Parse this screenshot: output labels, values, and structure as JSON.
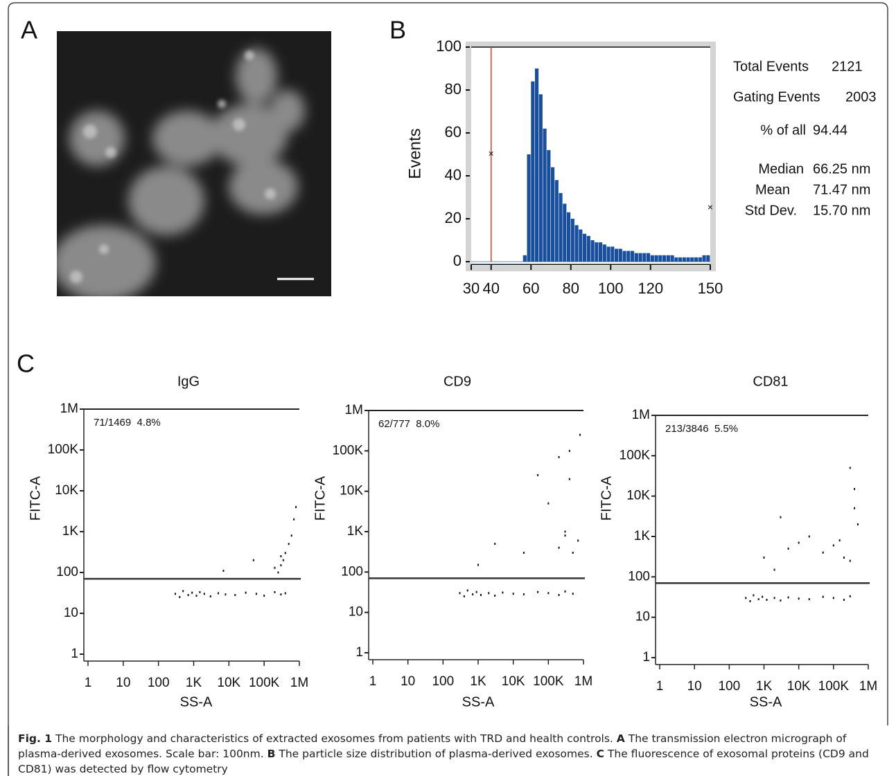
{
  "labels": [
    "A",
    "B",
    "C"
  ],
  "chart_data": [
    {
      "type": "histogram",
      "ylabel": "Events",
      "bins": [
        56,
        58,
        60,
        62,
        64,
        66,
        68,
        70,
        72,
        74,
        76,
        78,
        80,
        82,
        84,
        86,
        88,
        90,
        92,
        94,
        96,
        98,
        100,
        102,
        104,
        106,
        108,
        110,
        112,
        114,
        116,
        118,
        120,
        122,
        124,
        126,
        128,
        130,
        132,
        134,
        136,
        138,
        140,
        142,
        144,
        146,
        148,
        150
      ],
      "values": [
        3,
        50,
        84,
        90,
        78,
        62,
        52,
        44,
        38,
        32,
        27,
        23,
        20,
        17,
        15,
        13,
        12,
        10,
        9,
        9,
        8,
        7,
        7,
        6,
        6,
        5,
        5,
        5,
        4,
        4,
        4,
        4,
        3,
        3,
        3,
        3,
        3,
        3,
        2,
        2,
        2,
        2,
        2,
        2,
        2,
        3,
        3
      ],
      "color": "#1a4f9c",
      "xlim": [
        30,
        150
      ],
      "xticks": [
        30,
        40,
        60,
        80,
        100,
        120,
        150
      ],
      "ylim": [
        0,
        100
      ],
      "yticks": [
        0,
        20,
        40,
        60,
        80,
        100
      ],
      "gate_markers": {
        "x": [
          40,
          150
        ],
        "y": [
          50,
          25
        ],
        "color": "#e03a2a"
      },
      "stats": [
        {
          "label": "Total Events",
          "value": "2121"
        },
        {
          "label": "Gating Events",
          "value": "2003"
        },
        {
          "label": "% of all",
          "value": "94.44"
        },
        {
          "label": "Median",
          "value": "66.25 nm"
        },
        {
          "label": "Mean",
          "value": "71.47 nm"
        },
        {
          "label": "Std Dev.",
          "value": "15.70 nm"
        }
      ]
    },
    {
      "type": "scatter",
      "title": "IgG",
      "xlabel": "SS-A",
      "ylabel": "FITC-A",
      "log": true,
      "gate_y": 70,
      "gate_label": "71/1469  4.8%",
      "xlim": [
        1,
        1000000
      ],
      "ylim": [
        1,
        1000000
      ],
      "xticks": [
        1,
        10,
        100,
        {
          "value": 1000,
          "label": "1K"
        },
        {
          "value": 10000,
          "label": "10K"
        },
        {
          "value": 100000,
          "label": "100K"
        },
        {
          "value": 1000000,
          "label": "1M"
        }
      ],
      "yticks": [
        1,
        10,
        100,
        {
          "value": 1000,
          "label": "1K"
        },
        {
          "value": 10000,
          "label": "10K"
        },
        {
          "value": 100000,
          "label": "100K"
        },
        {
          "value": 1000000,
          "label": "1M"
        }
      ],
      "x": [
        300,
        400,
        500,
        700,
        900,
        1200,
        1500,
        2000,
        3000,
        5000,
        8000,
        15000,
        30000,
        60000,
        100000,
        200000,
        300000,
        400000,
        250000,
        300000,
        350000,
        400000,
        500000,
        600000,
        700000,
        800000,
        7000,
        50000,
        200000,
        300000
      ],
      "y": [
        30,
        25,
        35,
        28,
        32,
        27,
        33,
        30,
        26,
        31,
        29,
        28,
        32,
        30,
        27,
        33,
        29,
        31,
        100,
        150,
        200,
        300,
        500,
        800,
        2000,
        4000,
        110,
        200,
        130,
        250
      ]
    },
    {
      "type": "scatter",
      "title": "CD9",
      "xlabel": "SS-A",
      "ylabel": "FITC-A",
      "log": true,
      "gate_y": 70,
      "gate_label": "62/777  8.0%",
      "xlim": [
        1,
        1000000
      ],
      "ylim": [
        1,
        1000000
      ],
      "xticks": [
        1,
        10,
        100,
        {
          "value": 1000,
          "label": "1K"
        },
        {
          "value": 10000,
          "label": "10K"
        },
        {
          "value": 100000,
          "label": "100K"
        },
        {
          "value": 1000000,
          "label": "1M"
        }
      ],
      "yticks": [
        1,
        10,
        100,
        {
          "value": 1000,
          "label": "1K"
        },
        {
          "value": 10000,
          "label": "10K"
        },
        {
          "value": 100000,
          "label": "100K"
        },
        {
          "value": 1000000,
          "label": "1M"
        }
      ],
      "x": [
        300,
        400,
        500,
        700,
        900,
        1200,
        2000,
        3000,
        5000,
        10000,
        20000,
        50000,
        100000,
        200000,
        300000,
        500000,
        1000,
        3000,
        20000,
        50000,
        100000,
        200000,
        300000,
        400000,
        500000,
        700000,
        200000,
        400000,
        800000,
        300000
      ],
      "y": [
        30,
        25,
        35,
        28,
        32,
        27,
        30,
        26,
        31,
        29,
        28,
        32,
        30,
        27,
        33,
        29,
        150,
        500,
        300,
        25000,
        5000,
        400,
        800,
        100000,
        300,
        600,
        70000,
        20000,
        250000,
        1000
      ]
    },
    {
      "type": "scatter",
      "title": "CD81",
      "xlabel": "SS-A",
      "ylabel": "FITC-A",
      "log": true,
      "gate_y": 70,
      "gate_label": "213/3846  5.5%",
      "xlim": [
        1,
        1000000
      ],
      "ylim": [
        1,
        1000000
      ],
      "xticks": [
        1,
        10,
        100,
        {
          "value": 1000,
          "label": "1K"
        },
        {
          "value": 10000,
          "label": "10K"
        },
        {
          "value": 100000,
          "label": "100K"
        },
        {
          "value": 1000000,
          "label": "1M"
        }
      ],
      "yticks": [
        1,
        10,
        100,
        {
          "value": 1000,
          "label": "1K"
        },
        {
          "value": 10000,
          "label": "10K"
        },
        {
          "value": 100000,
          "label": "100K"
        },
        {
          "value": 1000000,
          "label": "1M"
        }
      ],
      "x": [
        300,
        400,
        500,
        700,
        900,
        1200,
        2000,
        3000,
        5000,
        10000,
        20000,
        50000,
        100000,
        200000,
        300000,
        1000,
        2000,
        3000,
        5000,
        10000,
        20000,
        50000,
        100000,
        150000,
        200000,
        300000,
        400000,
        500000,
        300000,
        400000
      ],
      "y": [
        30,
        25,
        35,
        28,
        32,
        27,
        30,
        26,
        31,
        29,
        28,
        32,
        30,
        27,
        33,
        300,
        150,
        3000,
        500,
        700,
        1000,
        400,
        600,
        800,
        300,
        250,
        5000,
        2000,
        50000,
        15000
      ]
    }
  ],
  "caption": [
    {
      "text": "Fig. 1",
      "bold": true
    },
    {
      "text": " The morphology and characteristics of extracted exosomes from patients with TRD and health controls. ",
      "bold": false
    },
    {
      "text": "A",
      "bold": true
    },
    {
      "text": " The transmission electron micrograph of plasma-derived exosomes. Scale bar: 100nm. ",
      "bold": false
    },
    {
      "text": "B",
      "bold": true
    },
    {
      "text": " The particle size distribution of plasma-derived exosomes. ",
      "bold": false
    },
    {
      "text": "C",
      "bold": true
    },
    {
      "text": " The fluorescence of exosomal proteins (CD9 and CD81) was detected by flow cytometry",
      "bold": false
    }
  ]
}
